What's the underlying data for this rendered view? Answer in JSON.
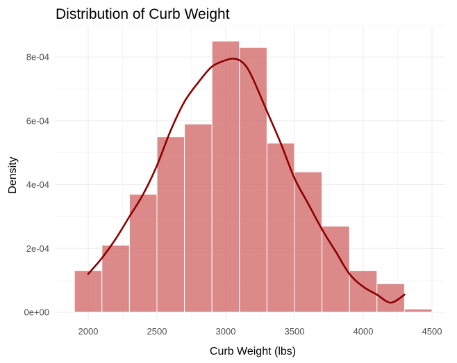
{
  "chart_data": {
    "type": "bar",
    "title": "Distribution of Curb Weight",
    "xlabel": "Curb Weight (lbs)",
    "ylabel": "Density",
    "xlim": [
      1900,
      4500
    ],
    "ylim": [
      0,
      0.00085
    ],
    "x_ticks": [
      2000,
      2500,
      3000,
      3500,
      4000,
      4500
    ],
    "x_tick_labels": [
      "2000",
      "2500",
      "3000",
      "3500",
      "4000",
      "4500"
    ],
    "y_ticks": [
      0,
      0.0002,
      0.0004,
      0.0006,
      0.0008
    ],
    "y_tick_labels": [
      "0e+00",
      "2e-04",
      "4e-04",
      "6e-04",
      "8e-04"
    ],
    "grid": true,
    "bin_width": 200,
    "bins": [
      {
        "start": 1900,
        "end": 2100,
        "density": 0.00013
      },
      {
        "start": 2100,
        "end": 2300,
        "density": 0.00021
      },
      {
        "start": 2300,
        "end": 2500,
        "density": 0.00037
      },
      {
        "start": 2500,
        "end": 2700,
        "density": 0.00055
      },
      {
        "start": 2700,
        "end": 2900,
        "density": 0.00059
      },
      {
        "start": 2900,
        "end": 3100,
        "density": 0.00085
      },
      {
        "start": 3100,
        "end": 3300,
        "density": 0.00083
      },
      {
        "start": 3300,
        "end": 3500,
        "density": 0.00053
      },
      {
        "start": 3500,
        "end": 3700,
        "density": 0.00044
      },
      {
        "start": 3700,
        "end": 3900,
        "density": 0.00027
      },
      {
        "start": 3900,
        "end": 4100,
        "density": 0.00013
      },
      {
        "start": 4100,
        "end": 4300,
        "density": 9e-05
      },
      {
        "start": 4300,
        "end": 4500,
        "density": 1e-05
      }
    ],
    "density_curve": {
      "x": [
        2000,
        2100,
        2200,
        2300,
        2400,
        2500,
        2600,
        2700,
        2800,
        2900,
        3000,
        3050,
        3100,
        3150,
        3200,
        3300,
        3400,
        3500,
        3600,
        3700,
        3800,
        3900,
        4000,
        4100,
        4200,
        4300
      ],
      "y": [
        0.00012,
        0.00017,
        0.00023,
        0.0003,
        0.00037,
        0.00046,
        0.00057,
        0.00066,
        0.00072,
        0.00077,
        0.00079,
        0.000795,
        0.00079,
        0.00077,
        0.00073,
        0.00063,
        0.00053,
        0.00042,
        0.00034,
        0.00026,
        0.00019,
        0.00012,
        8e-05,
        5.5e-05,
        3e-05,
        5.5e-05
      ],
      "color": "#8b0000"
    },
    "colors": {
      "bar_fill": "#cd5c5c",
      "bar_outline": "#ffffff",
      "density_line": "#8b0000"
    }
  }
}
